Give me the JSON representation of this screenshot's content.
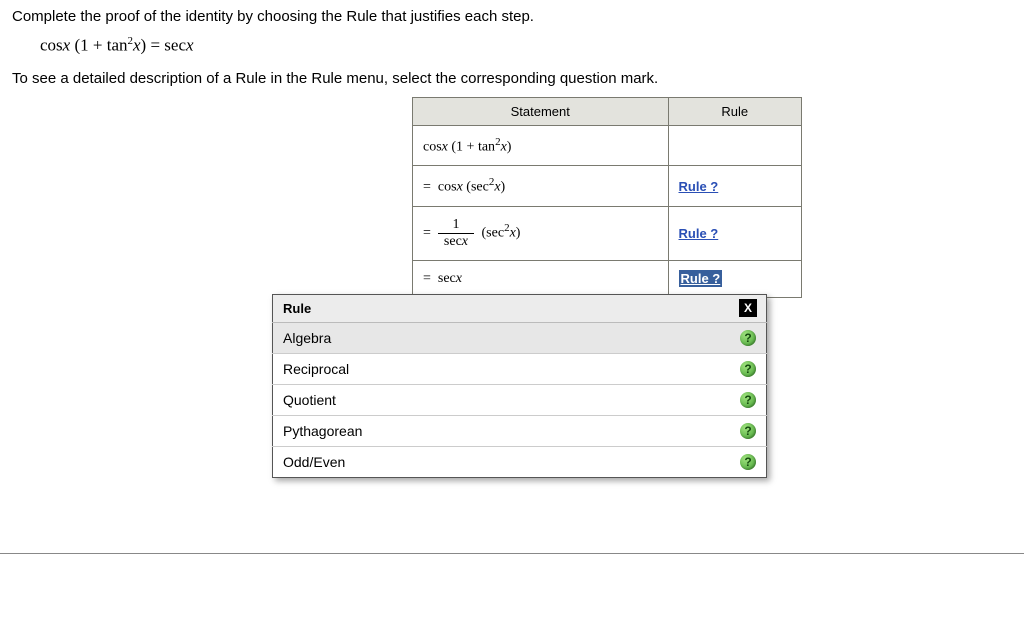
{
  "instr1": "Complete the proof of the identity by choosing the Rule that justifies each step.",
  "equation_html": "cos<i>x</i> (1 + tan<span class='sup'>2</span><i>x</i>) = sec<i>x</i>",
  "instr2": "To see a detailed description of a Rule in the Rule menu, select the corresponding question mark.",
  "table": {
    "headers": {
      "stmt": "Statement",
      "rule": "Rule"
    },
    "rows": [
      {
        "stmt_html": "cos<i>x</i> (1 + tan<span class='sup'>2</span><i>x</i>)",
        "rule": "",
        "highlight": false
      },
      {
        "stmt_html": "= &nbsp;cos<i>x</i> (sec<span class='sup'>2</span><i>x</i>)",
        "rule": "Rule ?",
        "highlight": false
      },
      {
        "stmt_html": "= &nbsp;<span class='frac'><span class='num'>1</span><span class='den'>sec<i>x</i></span></span> (sec<span class='sup'>2</span><i>x</i>)",
        "rule": "Rule ?",
        "highlight": false
      },
      {
        "stmt_html": "= &nbsp;sec<i>x</i>",
        "rule": "Rule ?",
        "highlight": true
      }
    ]
  },
  "menu": {
    "title": "Rule",
    "close": "X",
    "items": [
      {
        "label": "Algebra",
        "selected": true
      },
      {
        "label": "Reciprocal",
        "selected": false
      },
      {
        "label": "Quotient",
        "selected": false
      },
      {
        "label": "Pythagorean",
        "selected": false
      },
      {
        "label": "Odd/Even",
        "selected": false
      }
    ],
    "help_glyph": "?"
  },
  "colors": {
    "link": "#2a4fb5",
    "header_bg": "#e3e3dd",
    "border": "#7a7a70",
    "highlight_bg": "#375f9c"
  }
}
